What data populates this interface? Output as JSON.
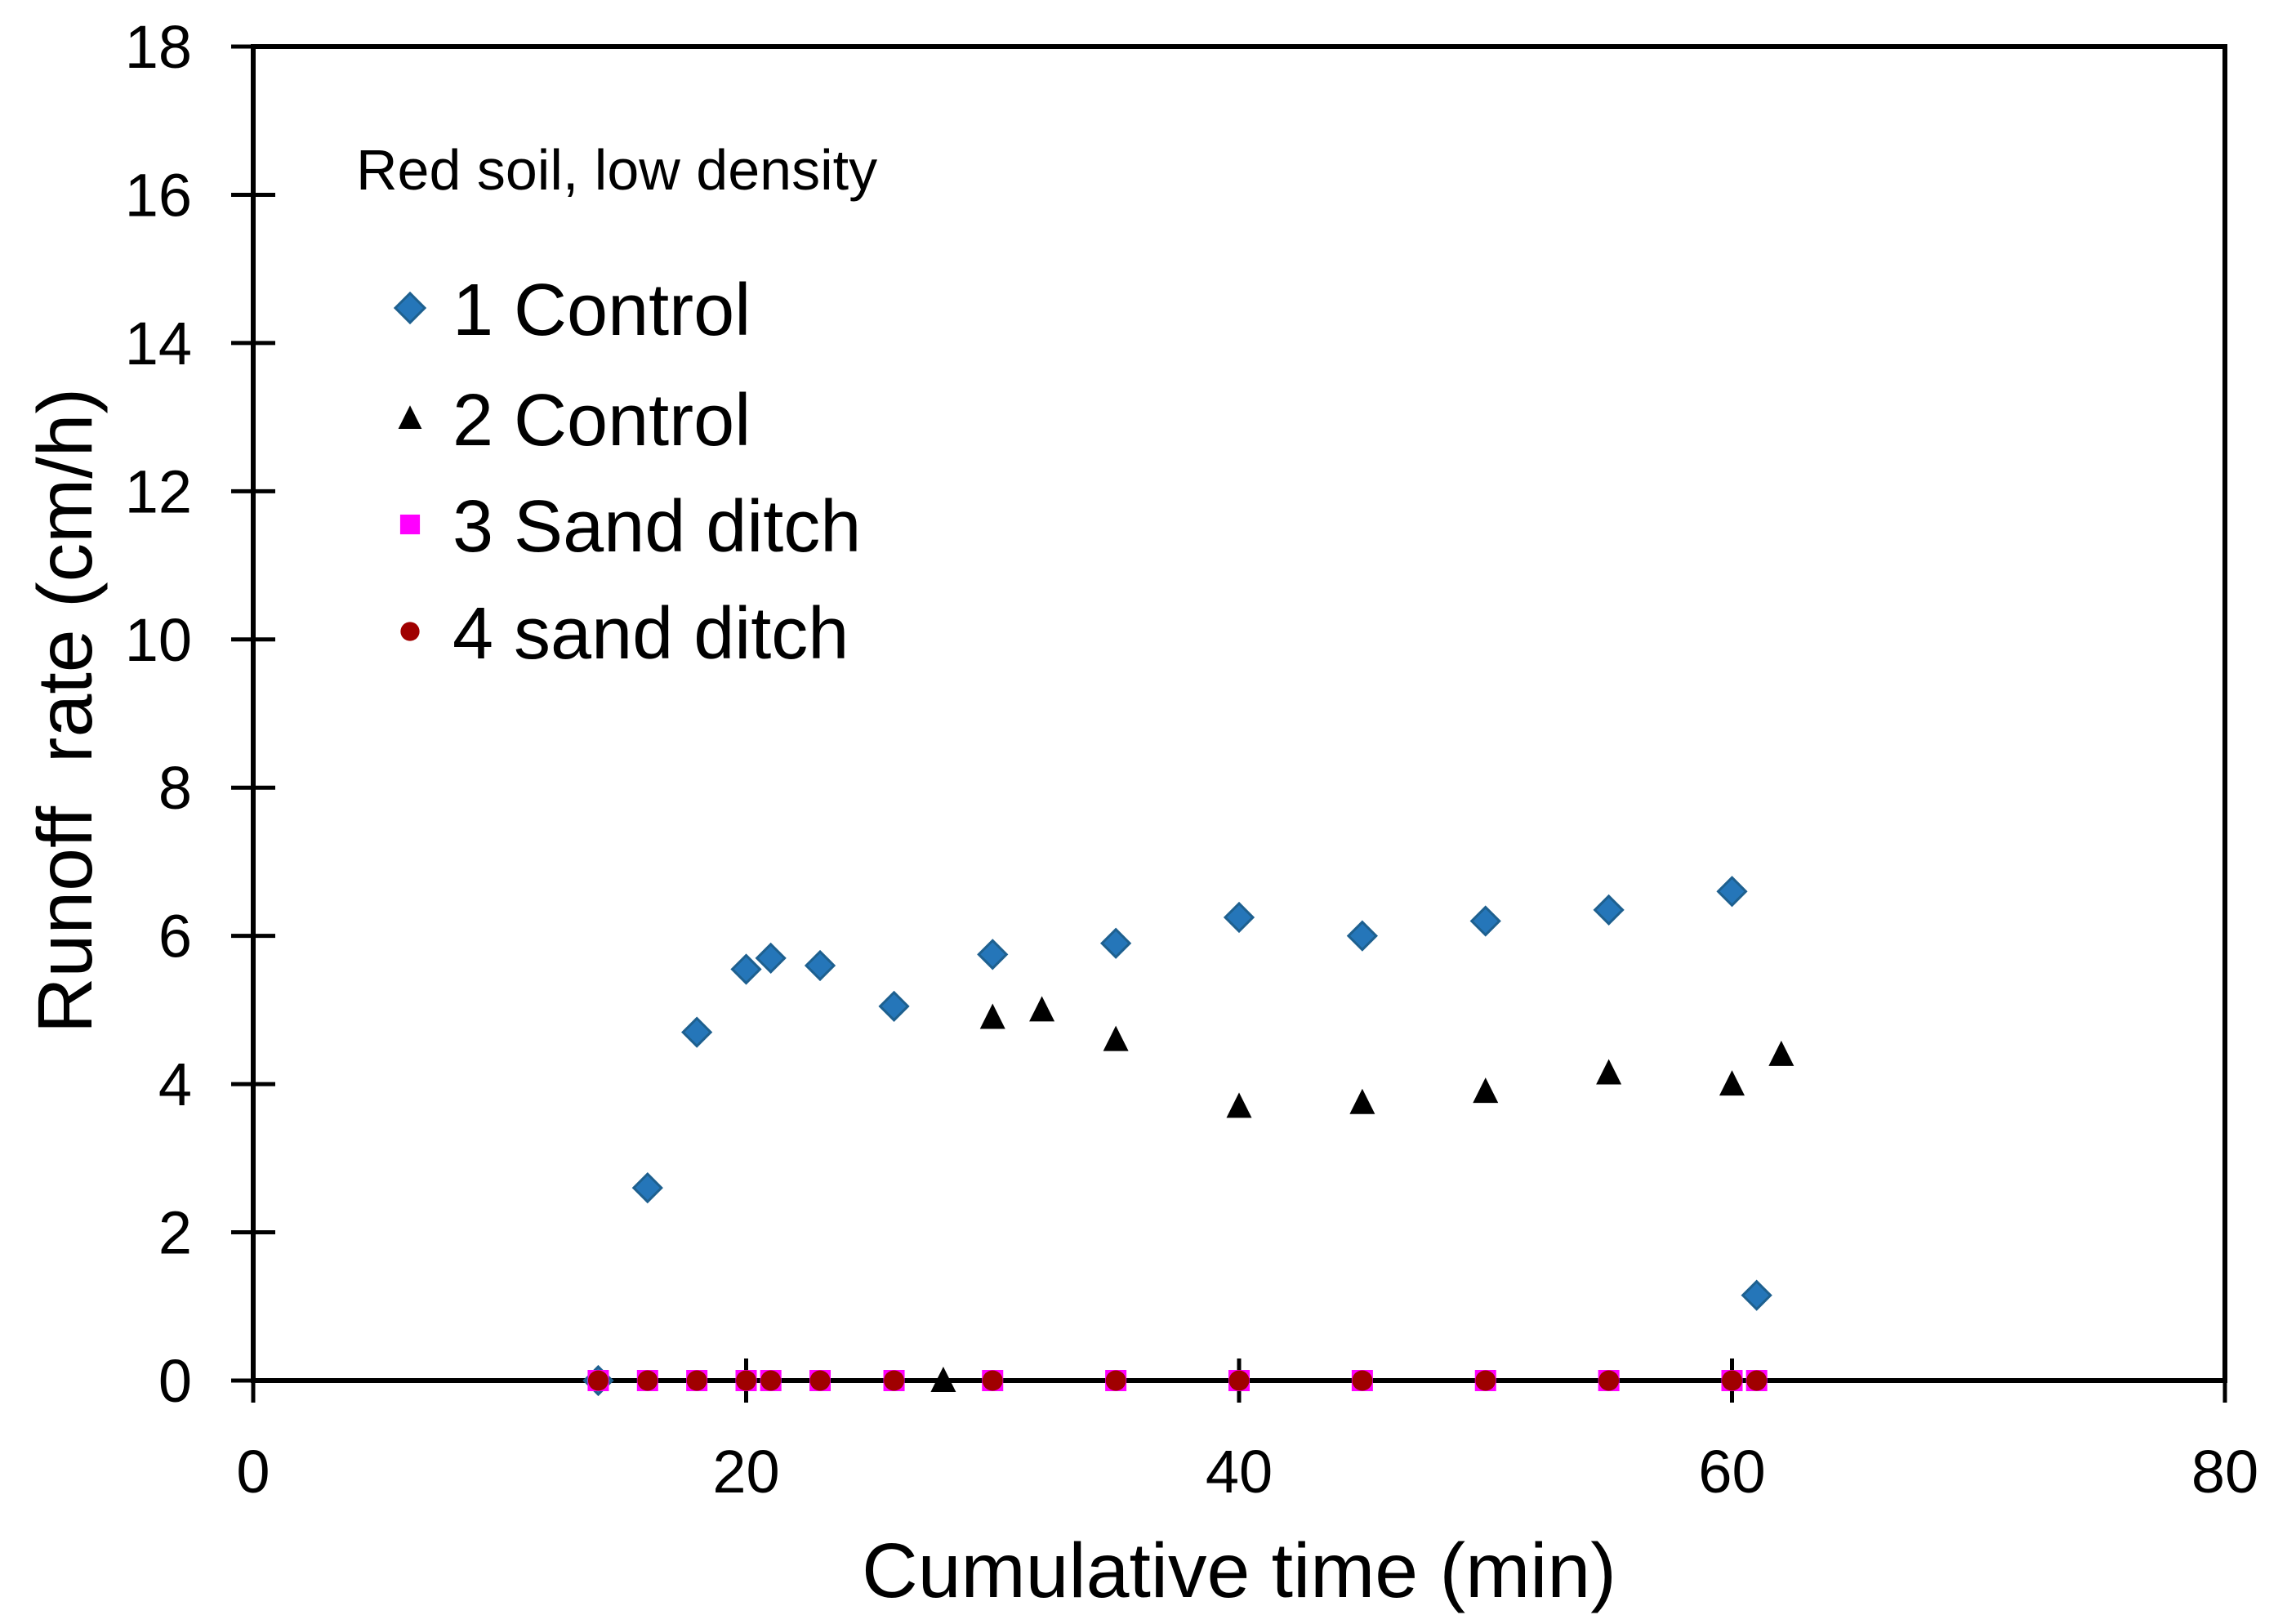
{
  "chart_data": {
    "type": "scatter",
    "annotation": "Red soil, low density",
    "xlabel": "Cumulative time (min)",
    "ylabel": "Runoff  rate (cm/h)",
    "xlim": [
      0,
      80
    ],
    "ylim": [
      0,
      18
    ],
    "x_ticks": [
      "0",
      "20",
      "40",
      "60",
      "80"
    ],
    "x_tick_values": [
      0,
      20,
      40,
      60,
      80
    ],
    "y_ticks": [
      "0",
      "2",
      "4",
      "6",
      "8",
      "10",
      "12",
      "14",
      "16",
      "18"
    ],
    "y_tick_values": [
      0,
      2,
      4,
      6,
      8,
      10,
      12,
      14,
      16,
      18
    ],
    "grid": false,
    "legend_position": "upper-left-inside",
    "series": [
      {
        "name": "1 Control",
        "marker": "diamond",
        "color": "#2576B9",
        "edge_color": "#1E608F",
        "points": [
          [
            14,
            0
          ],
          [
            16,
            2.6
          ],
          [
            18,
            4.7
          ],
          [
            20,
            5.55
          ],
          [
            21,
            5.7
          ],
          [
            23,
            5.6
          ],
          [
            26,
            5.05
          ],
          [
            30,
            5.75
          ],
          [
            35,
            5.9
          ],
          [
            40,
            6.25
          ],
          [
            45,
            6.0
          ],
          [
            50,
            6.2
          ],
          [
            55,
            6.35
          ],
          [
            60,
            6.6
          ],
          [
            61,
            1.15
          ]
        ]
      },
      {
        "name": "2 Control",
        "marker": "triangle",
        "color": "#000000",
        "edge_color": "#000000",
        "points": [
          [
            28,
            0
          ],
          [
            30,
            4.9
          ],
          [
            32,
            5.0
          ],
          [
            35,
            4.6
          ],
          [
            40,
            3.7
          ],
          [
            45,
            3.75
          ],
          [
            50,
            3.9
          ],
          [
            55,
            4.15
          ],
          [
            60,
            4.0
          ],
          [
            62,
            4.4
          ]
        ]
      },
      {
        "name": "3 Sand ditch",
        "marker": "square",
        "color": "#FF00FF",
        "edge_color": "#FF00FF",
        "points": [
          [
            14,
            0
          ],
          [
            16,
            0
          ],
          [
            18,
            0
          ],
          [
            20,
            0
          ],
          [
            21,
            0
          ],
          [
            23,
            0
          ],
          [
            26,
            0
          ],
          [
            30,
            0
          ],
          [
            35,
            0
          ],
          [
            40,
            0
          ],
          [
            45,
            0
          ],
          [
            50,
            0
          ],
          [
            55,
            0
          ],
          [
            60,
            0
          ],
          [
            61,
            0
          ]
        ]
      },
      {
        "name": "4 sand ditch",
        "marker": "circle",
        "color": "#A00000",
        "edge_color": "#A00000",
        "points": [
          [
            14,
            0
          ],
          [
            16,
            0
          ],
          [
            18,
            0
          ],
          [
            20,
            0
          ],
          [
            21,
            0
          ],
          [
            23,
            0
          ],
          [
            26,
            0
          ],
          [
            30,
            0
          ],
          [
            35,
            0
          ],
          [
            40,
            0
          ],
          [
            45,
            0
          ],
          [
            50,
            0
          ],
          [
            55,
            0
          ],
          [
            60,
            0
          ],
          [
            61,
            0
          ]
        ]
      }
    ],
    "colors": {
      "axis": "#000000",
      "background": "#ffffff",
      "series_1": "#2576B9",
      "series_2": "#000000",
      "series_3": "#FF00FF",
      "series_4": "#A00000"
    }
  }
}
